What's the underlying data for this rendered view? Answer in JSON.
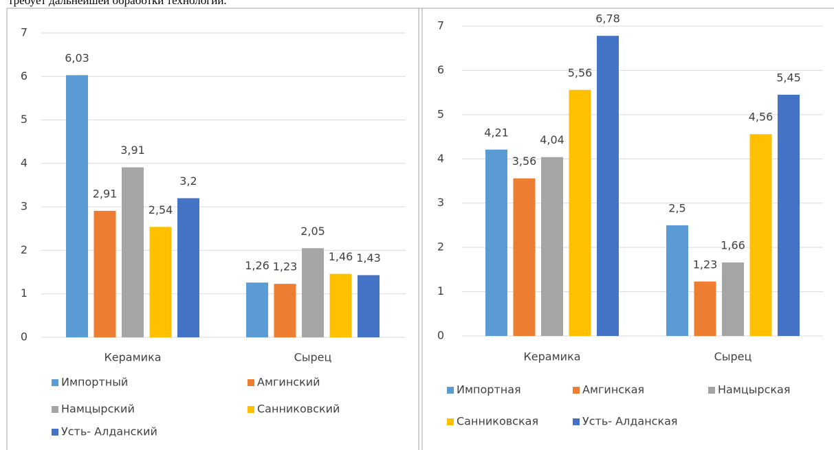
{
  "caption": "требует дальнейшей обработки технологии.",
  "chart_data": [
    {
      "type": "bar",
      "categories": [
        "Керамика",
        "Сырец"
      ],
      "ylim": [
        0,
        7
      ],
      "yticks": [
        0,
        1,
        2,
        3,
        4,
        5,
        6,
        7
      ],
      "grid": true,
      "series": [
        {
          "name": "Импортный",
          "color": "#5b9bd5",
          "values": [
            6.03,
            1.26
          ],
          "value_labels": [
            "6,03",
            "1,26"
          ]
        },
        {
          "name": "Амгинский",
          "color": "#ed7d31",
          "values": [
            2.91,
            1.23
          ],
          "value_labels": [
            "2,91",
            "1,23"
          ]
        },
        {
          "name": "Намцырский",
          "color": "#a5a5a5",
          "values": [
            3.91,
            2.05
          ],
          "value_labels": [
            "3,91",
            "2,05"
          ]
        },
        {
          "name": "Санниковский",
          "color": "#ffc000",
          "values": [
            2.54,
            1.46
          ],
          "value_labels": [
            "2,54",
            "1,46"
          ]
        },
        {
          "name": "Усть- Алданский",
          "color": "#4472c4",
          "values": [
            3.2,
            1.43
          ],
          "value_labels": [
            "3,2",
            "1,43"
          ]
        }
      ]
    },
    {
      "type": "bar",
      "categories": [
        "Керамика",
        "Сырец"
      ],
      "ylim": [
        0,
        7
      ],
      "yticks": [
        0,
        1,
        2,
        3,
        4,
        5,
        6,
        7
      ],
      "grid": true,
      "series": [
        {
          "name": "Импортная",
          "color": "#5b9bd5",
          "values": [
            4.21,
            2.5
          ],
          "value_labels": [
            "4,21",
            "2,5"
          ]
        },
        {
          "name": "Амгинская",
          "color": "#ed7d31",
          "values": [
            3.56,
            1.23
          ],
          "value_labels": [
            "3,56",
            "1,23"
          ]
        },
        {
          "name": "Намцырская",
          "color": "#a5a5a5",
          "values": [
            4.04,
            1.66
          ],
          "value_labels": [
            "4,04",
            "1,66"
          ]
        },
        {
          "name": "Санниковская",
          "color": "#ffc000",
          "values": [
            5.56,
            4.56
          ],
          "value_labels": [
            "5,56",
            "4,56"
          ]
        },
        {
          "name": "Усть- Алданская",
          "color": "#4472c4",
          "values": [
            6.78,
            5.45
          ],
          "value_labels": [
            "6,78",
            "5,45"
          ]
        }
      ]
    }
  ]
}
